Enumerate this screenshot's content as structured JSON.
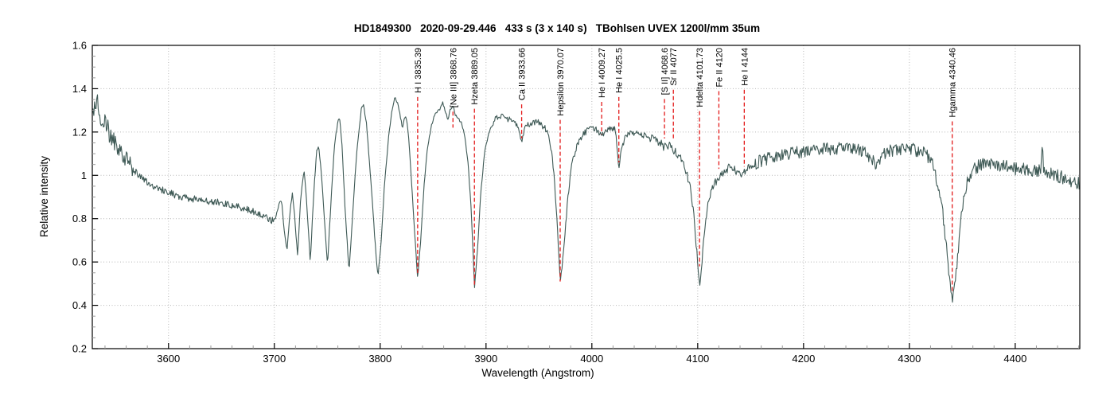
{
  "title": "HD1849300   2020-09-29.446   433 s (3 x 140 s)   TBohlsen UVEX 1200l/mm 35um",
  "chart_data": {
    "type": "line",
    "title": "HD1849300   2020-09-29.446   433 s (3 x 140 s)   TBohlsen UVEX 1200l/mm 35um",
    "xlabel": "Wavelength (Angstrom)",
    "ylabel": "Relative intensity",
    "xlim": [
      3528,
      4461
    ],
    "ylim": [
      0.2,
      1.6
    ],
    "x_ticks": [
      3600,
      3700,
      3800,
      3900,
      4000,
      4100,
      4200,
      4300,
      4400
    ],
    "y_ticks": [
      0.2,
      0.4,
      0.6,
      0.8,
      1,
      1.2,
      1.4,
      1.6
    ],
    "x_minor_step": 20,
    "y_minor_step": 0.05,
    "grid": "dotted-major",
    "legend": "none",
    "colors": {
      "line": "#3e5955",
      "annotation_line": "#e31a1a",
      "annotation_text": "#000000",
      "grid": "#b8b8b8",
      "axis": "#000000",
      "minor_tick": "#999999"
    },
    "series": [
      {
        "name": "HD1849300 spectrum",
        "keypoints": [
          [
            3528,
            1.27
          ],
          [
            3530,
            1.32
          ],
          [
            3533,
            1.37
          ],
          [
            3536,
            1.22
          ],
          [
            3540,
            1.27
          ],
          [
            3544,
            1.19
          ],
          [
            3548,
            1.16
          ],
          [
            3552,
            1.12
          ],
          [
            3557,
            1.09
          ],
          [
            3562,
            1.06
          ],
          [
            3570,
            1.01
          ],
          [
            3580,
            0.97
          ],
          [
            3590,
            0.94
          ],
          [
            3600,
            0.92
          ],
          [
            3612,
            0.9
          ],
          [
            3625,
            0.89
          ],
          [
            3640,
            0.88
          ],
          [
            3652,
            0.87
          ],
          [
            3662,
            0.86
          ],
          [
            3672,
            0.845
          ],
          [
            3682,
            0.83
          ],
          [
            3690,
            0.815
          ],
          [
            3697,
            0.79
          ],
          [
            3701,
            0.8
          ],
          [
            3705,
            0.875
          ],
          [
            3707,
            0.88
          ],
          [
            3709,
            0.76
          ],
          [
            3712,
            0.655
          ],
          [
            3715,
            0.84
          ],
          [
            3717,
            0.915
          ],
          [
            3719,
            0.82
          ],
          [
            3722,
            0.63
          ],
          [
            3725,
            0.9
          ],
          [
            3728,
            1.03
          ],
          [
            3730,
            0.92
          ],
          [
            3734,
            0.6
          ],
          [
            3737,
            0.9
          ],
          [
            3740,
            1.12
          ],
          [
            3742,
            1.13
          ],
          [
            3744,
            1.04
          ],
          [
            3747,
            0.82
          ],
          [
            3750.2,
            0.585
          ],
          [
            3754,
            0.92
          ],
          [
            3757,
            1.15
          ],
          [
            3760,
            1.25
          ],
          [
            3762,
            1.26
          ],
          [
            3764,
            1.13
          ],
          [
            3767,
            0.83
          ],
          [
            3770.6,
            0.555
          ],
          [
            3774,
            0.82
          ],
          [
            3778,
            1.12
          ],
          [
            3782,
            1.3
          ],
          [
            3784,
            1.33
          ],
          [
            3787,
            1.24
          ],
          [
            3790,
            1.05
          ],
          [
            3793,
            0.85
          ],
          [
            3795,
            0.7
          ],
          [
            3797.9,
            0.53
          ],
          [
            3801,
            0.7
          ],
          [
            3804,
            0.95
          ],
          [
            3808,
            1.18
          ],
          [
            3811,
            1.3
          ],
          [
            3814,
            1.36
          ],
          [
            3817,
            1.33
          ],
          [
            3819,
            1.27
          ],
          [
            3821,
            1.22
          ],
          [
            3823,
            1.27
          ],
          [
            3825,
            1.26
          ],
          [
            3827,
            1.17
          ],
          [
            3829,
            1.02
          ],
          [
            3832,
            0.78
          ],
          [
            3835.4,
            0.525
          ],
          [
            3838,
            0.68
          ],
          [
            3841,
            0.92
          ],
          [
            3844,
            1.1
          ],
          [
            3848,
            1.22
          ],
          [
            3852,
            1.29
          ],
          [
            3856,
            1.3
          ],
          [
            3859,
            1.34
          ],
          [
            3861,
            1.3
          ],
          [
            3864,
            1.26
          ],
          [
            3866,
            1.3
          ],
          [
            3868.8,
            1.32
          ],
          [
            3871,
            1.28
          ],
          [
            3874,
            1.26
          ],
          [
            3877,
            1.24
          ],
          [
            3880,
            1.18
          ],
          [
            3883,
            1.06
          ],
          [
            3886,
            0.84
          ],
          [
            3889.1,
            0.48
          ],
          [
            3892,
            0.66
          ],
          [
            3895,
            0.92
          ],
          [
            3899,
            1.12
          ],
          [
            3904,
            1.22
          ],
          [
            3909,
            1.26
          ],
          [
            3915,
            1.275
          ],
          [
            3921,
            1.26
          ],
          [
            3926,
            1.25
          ],
          [
            3930,
            1.23
          ],
          [
            3933.7,
            1.16
          ],
          [
            3937,
            1.22
          ],
          [
            3942,
            1.24
          ],
          [
            3948,
            1.25
          ],
          [
            3953,
            1.23
          ],
          [
            3957,
            1.21
          ],
          [
            3961,
            1.14
          ],
          [
            3964,
            1.02
          ],
          [
            3967,
            0.8
          ],
          [
            3970.1,
            0.5
          ],
          [
            3973,
            0.64
          ],
          [
            3977,
            0.88
          ],
          [
            3981,
            1.05
          ],
          [
            3986,
            1.14
          ],
          [
            3992,
            1.19
          ],
          [
            3999,
            1.22
          ],
          [
            4004,
            1.21
          ],
          [
            4009.3,
            1.18
          ],
          [
            4013,
            1.205
          ],
          [
            4018,
            1.22
          ],
          [
            4022,
            1.215
          ],
          [
            4025.5,
            1.04
          ],
          [
            4028,
            1.13
          ],
          [
            4032,
            1.18
          ],
          [
            4038,
            1.2
          ],
          [
            4045,
            1.19
          ],
          [
            4052,
            1.18
          ],
          [
            4058,
            1.165
          ],
          [
            4064,
            1.15
          ],
          [
            4068.6,
            1.13
          ],
          [
            4072,
            1.14
          ],
          [
            4077,
            1.12
          ],
          [
            4081,
            1.1
          ],
          [
            4085,
            1.07
          ],
          [
            4089,
            1.02
          ],
          [
            4093,
            0.94
          ],
          [
            4096,
            0.84
          ],
          [
            4099,
            0.66
          ],
          [
            4101.7,
            0.475
          ],
          [
            4104,
            0.6
          ],
          [
            4107,
            0.76
          ],
          [
            4110,
            0.87
          ],
          [
            4114,
            0.94
          ],
          [
            4118,
            0.98
          ],
          [
            4120,
            0.99
          ],
          [
            4123,
            1.01
          ],
          [
            4127,
            1.03
          ],
          [
            4132,
            1.035
          ],
          [
            4137,
            1.02
          ],
          [
            4141,
            1.0
          ],
          [
            4144,
            1.015
          ],
          [
            4149,
            1.04
          ],
          [
            4156,
            1.06
          ],
          [
            4164,
            1.075
          ],
          [
            4172,
            1.085
          ],
          [
            4181,
            1.095
          ],
          [
            4190,
            1.105
          ],
          [
            4200,
            1.11
          ],
          [
            4210,
            1.115
          ],
          [
            4220,
            1.12
          ],
          [
            4230,
            1.125
          ],
          [
            4240,
            1.12
          ],
          [
            4250,
            1.125
          ],
          [
            4258,
            1.11
          ],
          [
            4264,
            1.08
          ],
          [
            4269,
            1.05
          ],
          [
            4274,
            1.09
          ],
          [
            4280,
            1.11
          ],
          [
            4290,
            1.115
          ],
          [
            4300,
            1.12
          ],
          [
            4308,
            1.115
          ],
          [
            4315,
            1.1
          ],
          [
            4321,
            1.06
          ],
          [
            4326,
            0.98
          ],
          [
            4330,
            0.88
          ],
          [
            4334,
            0.72
          ],
          [
            4337,
            0.55
          ],
          [
            4340.5,
            0.42
          ],
          [
            4343,
            0.5
          ],
          [
            4346,
            0.65
          ],
          [
            4349,
            0.8
          ],
          [
            4352,
            0.91
          ],
          [
            4356,
            0.99
          ],
          [
            4361,
            1.03
          ],
          [
            4368,
            1.05
          ],
          [
            4376,
            1.05
          ],
          [
            4384,
            1.045
          ],
          [
            4392,
            1.04
          ],
          [
            4400,
            1.03
          ],
          [
            4408,
            1.03
          ],
          [
            4416,
            1.02
          ],
          [
            4424,
            1.02
          ],
          [
            4425.5,
            1.15
          ],
          [
            4427,
            1.02
          ],
          [
            4434,
            1.005
          ],
          [
            4442,
            0.995
          ],
          [
            4450,
            0.98
          ],
          [
            4456,
            0.97
          ],
          [
            4461,
            0.96
          ]
        ]
      }
    ],
    "noise_segments": [
      {
        "from": 3528,
        "to": 3566,
        "amp": 0.04
      },
      {
        "from": 3566,
        "to": 3700,
        "amp": 0.016
      },
      {
        "from": 3700,
        "to": 3905,
        "amp": 0.006
      },
      {
        "from": 3905,
        "to": 4055,
        "amp": 0.014
      },
      {
        "from": 4055,
        "to": 4150,
        "amp": 0.02
      },
      {
        "from": 4150,
        "to": 4461,
        "amp": 0.03
      }
    ],
    "annotations": [
      {
        "label": "H I 3835.39",
        "wavelength": 3835.39,
        "line_end_intensity": 0.54
      },
      {
        "label": "[Ne III] 3868.76",
        "wavelength": 3868.76,
        "line_end_intensity": 1.22
      },
      {
        "label": "Hzeta 3889.05",
        "wavelength": 3889.05,
        "line_end_intensity": 0.49
      },
      {
        "label": "Ca II 3933.66",
        "wavelength": 3933.66,
        "line_end_intensity": 1.17
      },
      {
        "label": "Hepsilon 3970.07",
        "wavelength": 3970.07,
        "line_end_intensity": 0.51
      },
      {
        "label": "He I 4009.27",
        "wavelength": 4009.27,
        "line_end_intensity": 1.19
      },
      {
        "label": "He I 4025.5",
        "wavelength": 4025.5,
        "line_end_intensity": 1.06
      },
      {
        "label": "[S II] 4068.6",
        "wavelength": 4068.6,
        "line_end_intensity": 1.17
      },
      {
        "label": "Sr II 4077",
        "wavelength": 4077,
        "line_end_intensity": 1.16
      },
      {
        "label": "Hdelta 4101.73",
        "wavelength": 4101.73,
        "line_end_intensity": 0.58
      },
      {
        "label": "Fe II 4120",
        "wavelength": 4120,
        "line_end_intensity": 1.03
      },
      {
        "label": "He I 4144",
        "wavelength": 4144,
        "line_end_intensity": 1.04
      },
      {
        "label": "Hgamma 4340.46",
        "wavelength": 4340.46,
        "line_end_intensity": 0.46
      }
    ]
  }
}
